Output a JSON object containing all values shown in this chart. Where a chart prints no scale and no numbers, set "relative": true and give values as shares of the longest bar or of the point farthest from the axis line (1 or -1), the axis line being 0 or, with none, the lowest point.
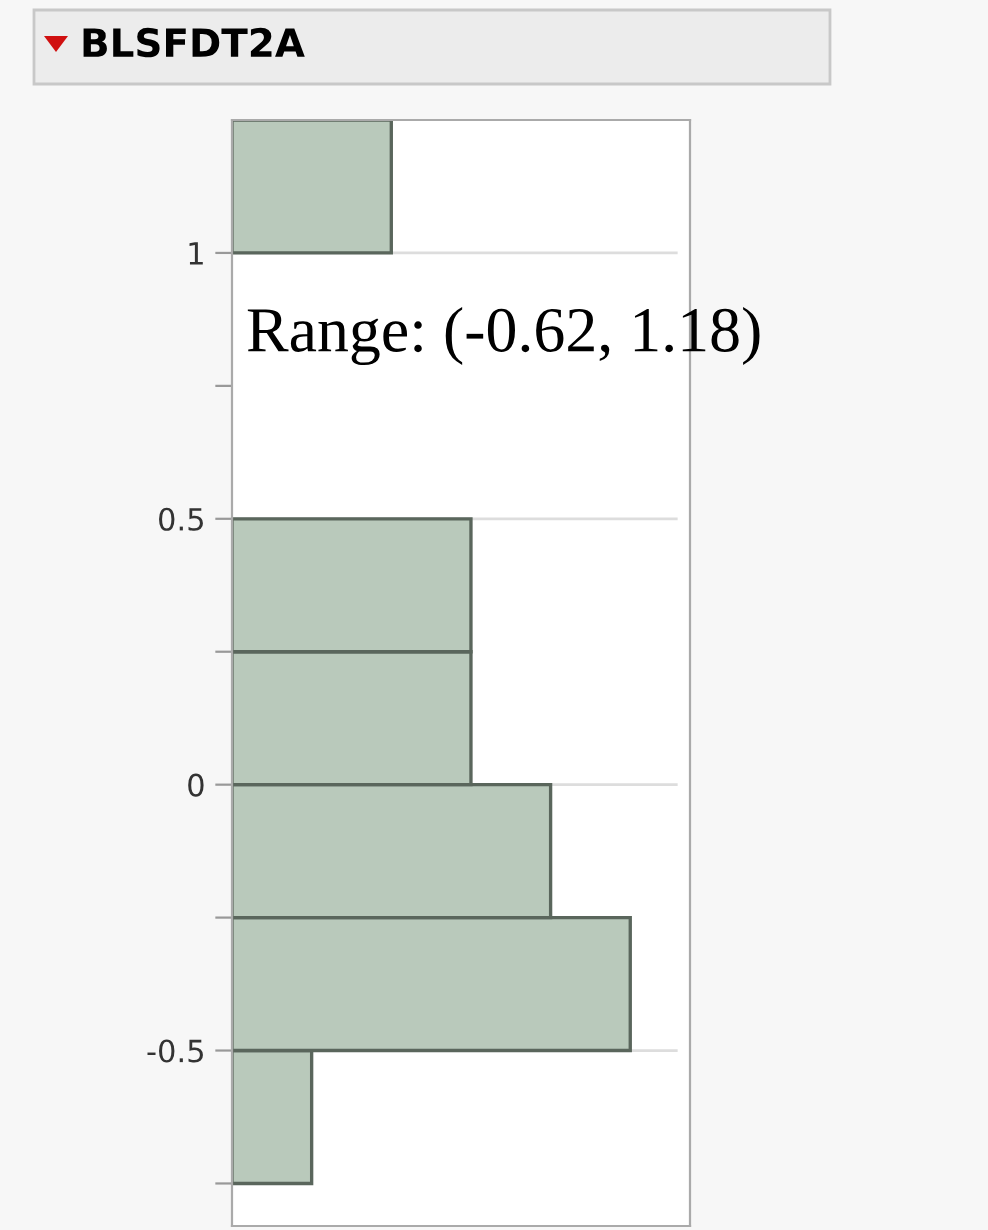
{
  "chart_data": {
    "type": "bar",
    "title": "BLSFDT2A",
    "orientation": "horizontal",
    "relative": true,
    "x": [
      -0.625,
      -0.375,
      -0.125,
      0.125,
      0.375,
      0.625,
      0.875,
      1.125
    ],
    "values": [
      0.2,
      1,
      0.8,
      0.6,
      0.6,
      0,
      0,
      0.4
    ],
    "color": "#b9c9bb",
    "ylim": [
      -0.83,
      1.25
    ],
    "yticks": [
      {
        "value": -0.75,
        "label": null
      },
      -0.5,
      {
        "value": -0.25,
        "label": null
      },
      0,
      {
        "value": 0.25,
        "label": null
      },
      0.5,
      {
        "value": 0.75,
        "label": null
      },
      1
    ],
    "grid": "y",
    "annotations": [
      "Range: (-0.62, 1.18)"
    ]
  }
}
